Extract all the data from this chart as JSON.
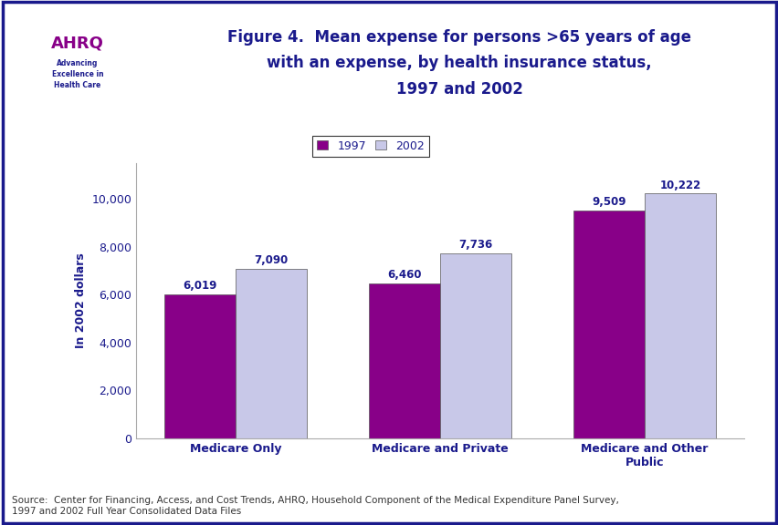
{
  "title_line1": "Figure 4.  Mean expense for persons >65 years of age",
  "title_line2": "with an expense, by health insurance status,",
  "title_line3": "1997 and 2002",
  "ylabel": "In 2002 dollars",
  "categories": [
    "Medicare Only",
    "Medicare and Private",
    "Medicare and Other\nPublic"
  ],
  "values_1997": [
    6019,
    6460,
    9509
  ],
  "values_2002": [
    7090,
    7736,
    10222
  ],
  "labels_1997": [
    "6,019",
    "6,460",
    "9,509"
  ],
  "labels_2002": [
    "7,090",
    "7,736",
    "10,222"
  ],
  "color_1997": "#880088",
  "color_2002": "#c8c8e8",
  "bar_edge_color": "#555555",
  "ylim": [
    0,
    11500
  ],
  "yticks": [
    0,
    2000,
    4000,
    6000,
    8000,
    10000
  ],
  "ytick_labels": [
    "0",
    "2,000",
    "4,000",
    "6,000",
    "8,000",
    "10,000"
  ],
  "legend_labels": [
    "1997",
    "2002"
  ],
  "title_color": "#1a1a8c",
  "axis_label_color": "#1a1a8c",
  "tick_label_color": "#1a1a8c",
  "source_text": "Source:  Center for Financing, Access, and Cost Trends, AHRQ, Household Component of the Medical Expenditure Panel Survey,\n1997 and 2002 Full Year Consolidated Data Files",
  "background_color": "#ffffff",
  "border_color": "#1a1a8c",
  "separator_color": "#1a1a8c",
  "bar_width": 0.35,
  "value_label_color": "#1a1a8c",
  "value_label_fontsize": 8.5,
  "xlabel_fontsize": 9,
  "ylabel_fontsize": 9,
  "title_fontsize": 12,
  "legend_fontsize": 9,
  "tick_fontsize": 9,
  "source_fontsize": 7.5,
  "logo_bg_color": "#2288cc",
  "logo_text_color": "#ffffff"
}
